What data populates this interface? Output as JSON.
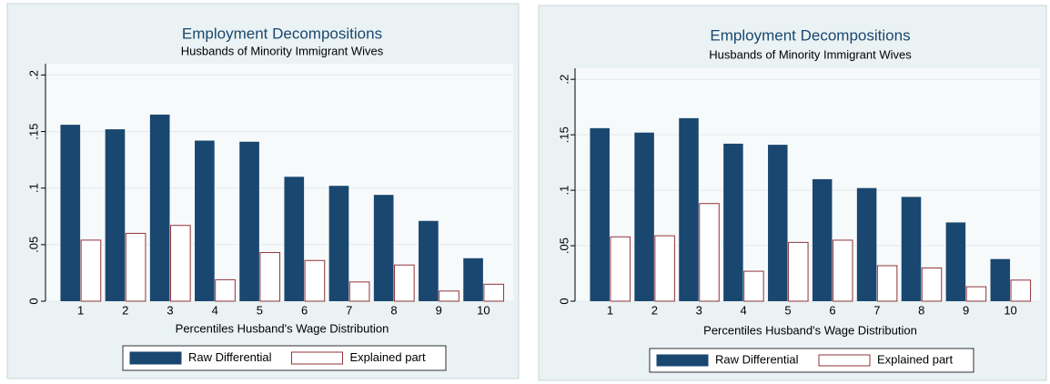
{
  "chart_data": [
    {
      "type": "bar",
      "title": "Employment Decompositions",
      "subtitle": "Husbands of Minority Immigrant Wives",
      "x_label": "Percentiles Husband's Wage Distribution",
      "categories": [
        "1",
        "2",
        "3",
        "4",
        "5",
        "6",
        "7",
        "8",
        "9",
        "10"
      ],
      "series": [
        {
          "name": "Raw Differential",
          "color": "#1a476f",
          "values": [
            0.156,
            0.152,
            0.165,
            0.142,
            0.141,
            0.11,
            0.102,
            0.094,
            0.071,
            0.038
          ]
        },
        {
          "name": "Explained part",
          "color": "#90353b",
          "values": [
            0.054,
            0.06,
            0.067,
            0.019,
            0.043,
            0.036,
            0.017,
            0.032,
            0.009,
            0.015
          ]
        }
      ],
      "ylim": [
        0,
        0.21
      ],
      "yticks": [
        0,
        {
          "value": 0.05,
          "label": ".05"
        },
        {
          "value": 0.1,
          "label": ".1"
        },
        {
          "value": 0.15,
          "label": ".15"
        },
        {
          "value": 0.2,
          "label": ".2"
        }
      ],
      "grid": true,
      "legend": "bottom"
    },
    {
      "type": "bar",
      "title": "Employment Decompositions",
      "subtitle": "Husbands of Minority Immigrant Wives",
      "x_label": "Percentiles Husband's Wage Distribution",
      "categories": [
        "1",
        "2",
        "3",
        "4",
        "5",
        "6",
        "7",
        "8",
        "9",
        "10"
      ],
      "series": [
        {
          "name": "Raw Differential",
          "color": "#1a476f",
          "values": [
            0.156,
            0.152,
            0.165,
            0.142,
            0.141,
            0.11,
            0.102,
            0.094,
            0.071,
            0.038
          ]
        },
        {
          "name": "Explained part",
          "color": "#90353b",
          "values": [
            0.058,
            0.059,
            0.088,
            0.027,
            0.053,
            0.055,
            0.032,
            0.03,
            0.013,
            0.019
          ]
        }
      ],
      "ylim": [
        0,
        0.21
      ],
      "yticks": [
        0,
        {
          "value": 0.05,
          "label": ".05"
        },
        {
          "value": 0.1,
          "label": ".1"
        },
        {
          "value": 0.15,
          "label": ".15"
        },
        {
          "value": 0.2,
          "label": ".2"
        }
      ],
      "grid": true,
      "legend": "bottom"
    }
  ]
}
